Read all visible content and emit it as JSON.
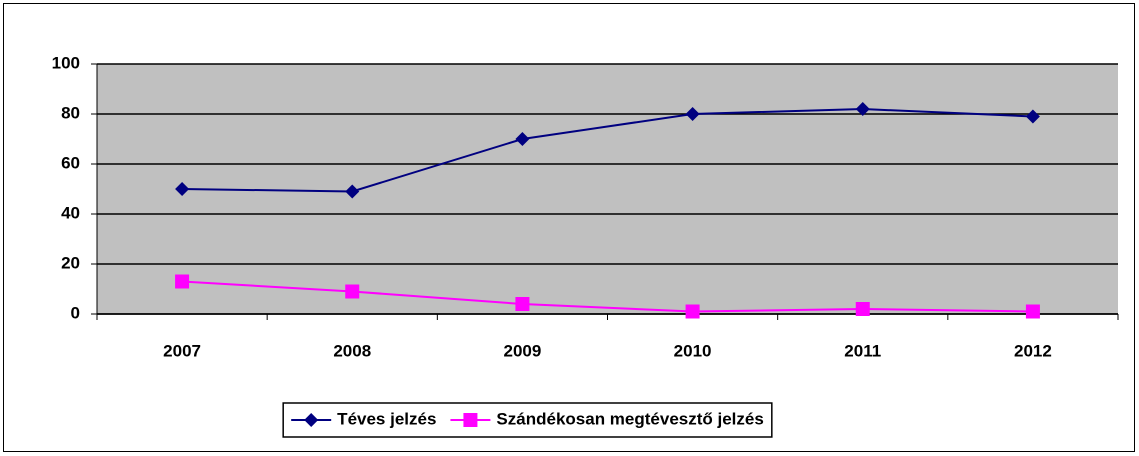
{
  "chart_data": {
    "type": "line",
    "categories": [
      "2007",
      "2008",
      "2009",
      "2010",
      "2011",
      "2012"
    ],
    "series": [
      {
        "name": "Téves jelzés",
        "color": "#000080",
        "marker": "diamond",
        "values": [
          50,
          49,
          70,
          80,
          82,
          79
        ]
      },
      {
        "name": "Szándékosan megtévesztő jelzés",
        "color": "#ff00ff",
        "marker": "square",
        "values": [
          13,
          9,
          4,
          1,
          2,
          1
        ]
      }
    ],
    "ylim": [
      0,
      100
    ],
    "yticks": [
      0,
      20,
      40,
      60,
      80,
      100
    ],
    "grid": true,
    "legend": "bottom"
  }
}
